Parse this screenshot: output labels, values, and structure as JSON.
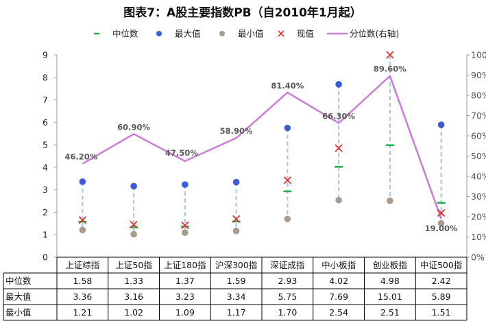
{
  "chart_data": {
    "type": "line",
    "title": "图表7：A股主要指数PB（自2010年1月起）",
    "categories": [
      "上证综指",
      "上证50指",
      "上证180指",
      "沪深300指",
      "深证成指",
      "中小板指",
      "创业板指",
      "中证500指"
    ],
    "series": [
      {
        "name": "中位数",
        "marker": "dash",
        "color": "#22B14C",
        "axis": "left",
        "values": [
          1.58,
          1.33,
          1.37,
          1.59,
          2.93,
          4.02,
          4.98,
          2.42
        ]
      },
      {
        "name": "最大值",
        "marker": "circle",
        "color": "#3B5BDB",
        "axis": "left",
        "values": [
          3.36,
          3.16,
          3.23,
          3.34,
          5.75,
          7.69,
          15.01,
          5.89
        ]
      },
      {
        "name": "最小值",
        "marker": "circle",
        "color": "#A89A8C",
        "axis": "left",
        "values": [
          1.21,
          1.02,
          1.09,
          1.17,
          1.7,
          2.54,
          2.51,
          1.51
        ]
      },
      {
        "name": "现值",
        "marker": "x",
        "color": "#E03030",
        "axis": "left",
        "values": [
          1.65,
          1.45,
          1.42,
          1.7,
          3.42,
          4.85,
          9.1,
          1.97
        ]
      },
      {
        "name": "分位数(右轴)",
        "marker": "line",
        "color": "#CC7FD6",
        "axis": "right",
        "values": [
          46.2,
          60.9,
          47.5,
          58.9,
          81.4,
          66.3,
          89.6,
          19.0
        ]
      }
    ],
    "percent_labels": [
      "46.20%",
      "60.90%",
      "47.50%",
      "58.90%",
      "81.40%",
      "66.30%",
      "89.60%",
      "19.00%"
    ],
    "ylim": [
      0,
      9
    ],
    "yticks": [
      "0",
      "1",
      "2",
      "3",
      "4",
      "5",
      "6",
      "7",
      "8",
      "9"
    ],
    "y2lim": [
      0,
      100
    ],
    "y2ticks": [
      "0%",
      "10%",
      "20%",
      "30%",
      "40%",
      "50%",
      "60%",
      "70%",
      "80%",
      "90%",
      "100%"
    ],
    "legend_position": "top",
    "range_line_color": "#A9CBEA",
    "table_rows": [
      {
        "label": "中位数",
        "values": [
          "1.58",
          "1.33",
          "1.37",
          "1.59",
          "2.93",
          "4.02",
          "4.98",
          "2.42"
        ]
      },
      {
        "label": "最大值",
        "values": [
          "3.36",
          "3.16",
          "3.23",
          "3.34",
          "5.75",
          "7.69",
          "15.01",
          "5.89"
        ]
      },
      {
        "label": "最小值",
        "values": [
          "1.21",
          "1.02",
          "1.09",
          "1.17",
          "1.70",
          "2.54",
          "2.51",
          "1.51"
        ]
      }
    ]
  }
}
